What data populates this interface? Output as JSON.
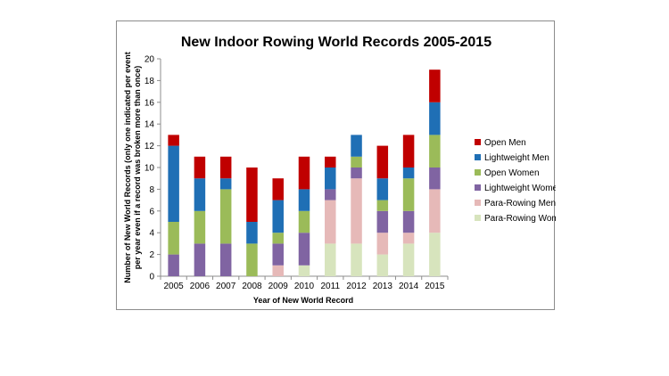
{
  "chart_data": {
    "type": "bar",
    "stacked": true,
    "title": "New Indoor Rowing World Records 2005-2015",
    "xlabel": "Year of New World Record",
    "ylabel_lines": [
      "Number of New World Records (only one indicated per  event",
      "per year even if a record was broken more than once)"
    ],
    "ylim": [
      0,
      20
    ],
    "yticks": [
      0,
      2,
      4,
      6,
      8,
      10,
      12,
      14,
      16,
      18,
      20
    ],
    "grid": false,
    "legend_position": "right",
    "categories": [
      "2005",
      "2006",
      "2007",
      "2008",
      "2009",
      "2010",
      "2011",
      "2012",
      "2013",
      "2014",
      "2015"
    ],
    "series": [
      {
        "name": "Para-Rowing Women",
        "color": "#d7e4bd",
        "values": [
          0,
          0,
          0,
          0,
          0,
          1,
          3,
          3,
          2,
          3,
          4
        ]
      },
      {
        "name": "Para-Rowing Men",
        "color": "#e6b9b8",
        "values": [
          0,
          0,
          0,
          0,
          1,
          0,
          4,
          6,
          2,
          1,
          4
        ]
      },
      {
        "name": "Lightweight Women",
        "color": "#8064a2",
        "values": [
          2,
          3,
          3,
          0,
          2,
          3,
          1,
          1,
          2,
          2,
          2
        ]
      },
      {
        "name": "Open Women",
        "color": "#9bbb59",
        "values": [
          3,
          3,
          5,
          3,
          1,
          2,
          0,
          1,
          1,
          3,
          3
        ]
      },
      {
        "name": "Lightweight Men",
        "color": "#1f6fb5",
        "values": [
          7,
          3,
          1,
          2,
          3,
          2,
          2,
          2,
          2,
          1,
          3
        ]
      },
      {
        "name": "Open Men",
        "color": "#c00000",
        "values": [
          1,
          2,
          2,
          5,
          2,
          3,
          1,
          0,
          3,
          3,
          3
        ]
      }
    ],
    "legend_order": [
      "Open Men",
      "Lightweight Men",
      "Open Women",
      "Lightweight Women",
      "Para-Rowing Men",
      "Para-Rowing Women"
    ]
  }
}
